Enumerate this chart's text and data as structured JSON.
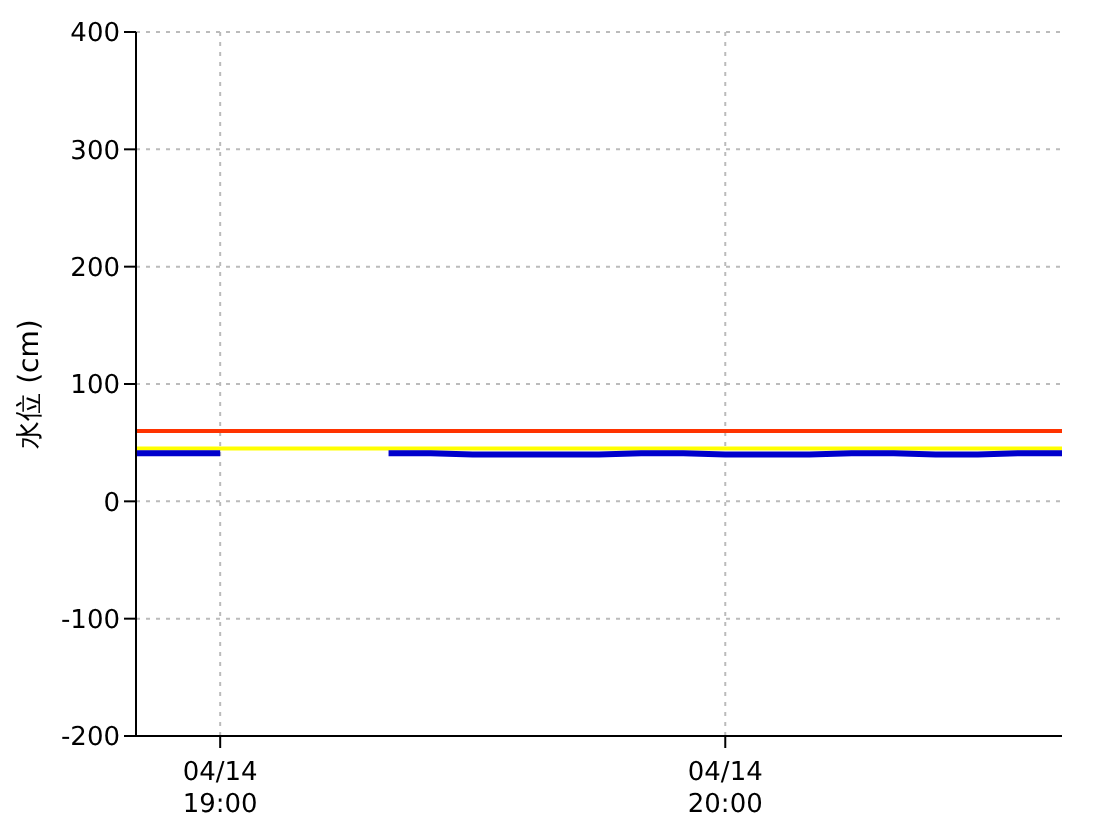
{
  "chart_data": {
    "type": "line",
    "ylabel": "水位 (cm)",
    "x": [
      "--04-14T18:50",
      "--04-14T18:55",
      "--04-14T19:00",
      "--04-14T19:10",
      "--04-14T19:20",
      "--04-14T19:25",
      "--04-14T19:30",
      "--04-14T19:35",
      "--04-14T19:40",
      "--04-14T19:45",
      "--04-14T19:50",
      "--04-14T19:55",
      "--04-14T20:00",
      "--04-14T20:05",
      "--04-14T20:10",
      "--04-14T20:15",
      "--04-14T20:20",
      "--04-14T20:25",
      "--04-14T20:30",
      "--04-14T20:35",
      "--04-14T20:40"
    ],
    "series": [
      {
        "color": "#0000cc",
        "values": [
          41,
          41,
          41,
          null,
          41,
          41,
          40,
          40,
          40,
          40,
          41,
          41,
          40,
          40,
          40,
          41,
          41,
          40,
          40,
          41,
          41
        ]
      }
    ],
    "xlim": [
      "--04-14T18:50",
      "--04-14T20:40"
    ],
    "xticks": [
      {
        "value": "--04-14T19:00",
        "label": "04/14\n19:00"
      },
      {
        "value": "--04-14T20:00",
        "label": "04/14\n20:00"
      }
    ],
    "ylim": [
      -200,
      400
    ],
    "yticks": [
      -200,
      -100,
      0,
      100,
      200,
      300,
      400
    ],
    "ref_lines": [
      {
        "axis": "y",
        "value": 60,
        "color": "#ff3300"
      },
      {
        "axis": "y",
        "value": 45,
        "color": "#ffff00"
      }
    ],
    "grid": true,
    "marker": "none",
    "line_style": "solid",
    "legend": false
  }
}
